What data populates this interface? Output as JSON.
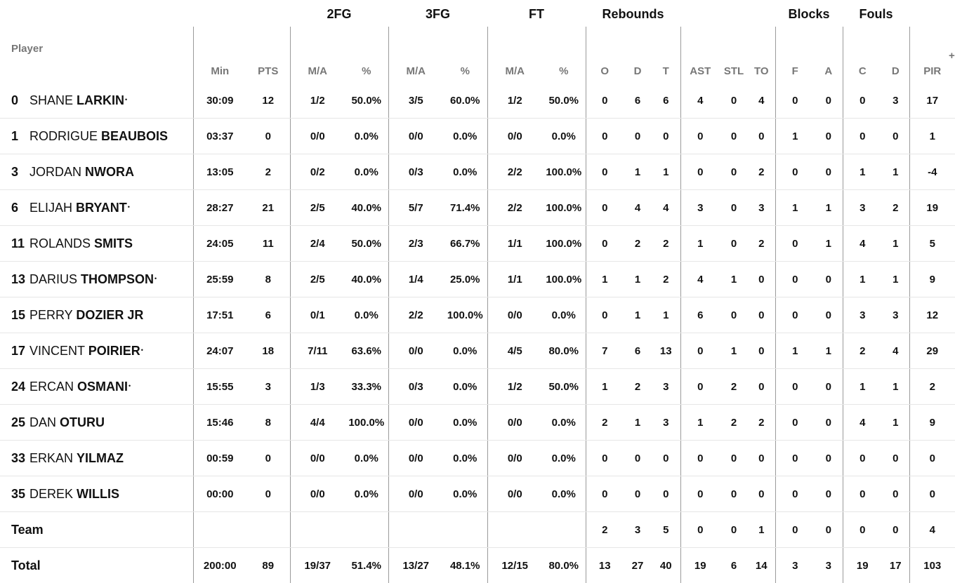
{
  "groups": {
    "fg2": "2FG",
    "fg3": "3FG",
    "ft": "FT",
    "rebounds": "Rebounds",
    "blocks": "Blocks",
    "fouls": "Fouls"
  },
  "columns": {
    "player": "Player",
    "min": "Min",
    "pts": "PTS",
    "fg2_ma": "M/A",
    "fg2_pct": "%",
    "fg3_ma": "M/A",
    "fg3_pct": "%",
    "ft_ma": "M/A",
    "ft_pct": "%",
    "reb_o": "O",
    "reb_d": "D",
    "reb_t": "T",
    "ast": "AST",
    "stl": "STL",
    "to": "TO",
    "blk_f": "F",
    "blk_a": "A",
    "foul_c": "C",
    "foul_d": "D",
    "pir": "PIR",
    "more": "+"
  },
  "starter_mark": "•",
  "players": [
    {
      "num": "0",
      "first": "SHANE",
      "last": "LARKIN",
      "starter": true,
      "min": "30:09",
      "pts": "12",
      "fg2_ma": "1/2",
      "fg2_pct": "50.0%",
      "fg3_ma": "3/5",
      "fg3_pct": "60.0%",
      "ft_ma": "1/2",
      "ft_pct": "50.0%",
      "o": "0",
      "d": "6",
      "t": "6",
      "ast": "4",
      "stl": "0",
      "to": "4",
      "bf": "0",
      "ba": "0",
      "fc": "0",
      "fd": "3",
      "pir": "17"
    },
    {
      "num": "1",
      "first": "RODRIGUE",
      "last": "BEAUBOIS",
      "starter": false,
      "min": "03:37",
      "pts": "0",
      "fg2_ma": "0/0",
      "fg2_pct": "0.0%",
      "fg3_ma": "0/0",
      "fg3_pct": "0.0%",
      "ft_ma": "0/0",
      "ft_pct": "0.0%",
      "o": "0",
      "d": "0",
      "t": "0",
      "ast": "0",
      "stl": "0",
      "to": "0",
      "bf": "1",
      "ba": "0",
      "fc": "0",
      "fd": "0",
      "pir": "1"
    },
    {
      "num": "3",
      "first": "JORDAN",
      "last": "NWORA",
      "starter": false,
      "min": "13:05",
      "pts": "2",
      "fg2_ma": "0/2",
      "fg2_pct": "0.0%",
      "fg3_ma": "0/3",
      "fg3_pct": "0.0%",
      "ft_ma": "2/2",
      "ft_pct": "100.0%",
      "o": "0",
      "d": "1",
      "t": "1",
      "ast": "0",
      "stl": "0",
      "to": "2",
      "bf": "0",
      "ba": "0",
      "fc": "1",
      "fd": "1",
      "pir": "-4"
    },
    {
      "num": "6",
      "first": "ELIJAH",
      "last": "BRYANT",
      "starter": true,
      "min": "28:27",
      "pts": "21",
      "fg2_ma": "2/5",
      "fg2_pct": "40.0%",
      "fg3_ma": "5/7",
      "fg3_pct": "71.4%",
      "ft_ma": "2/2",
      "ft_pct": "100.0%",
      "o": "0",
      "d": "4",
      "t": "4",
      "ast": "3",
      "stl": "0",
      "to": "3",
      "bf": "1",
      "ba": "1",
      "fc": "3",
      "fd": "2",
      "pir": "19"
    },
    {
      "num": "11",
      "first": "ROLANDS",
      "last": "SMITS",
      "starter": false,
      "min": "24:05",
      "pts": "11",
      "fg2_ma": "2/4",
      "fg2_pct": "50.0%",
      "fg3_ma": "2/3",
      "fg3_pct": "66.7%",
      "ft_ma": "1/1",
      "ft_pct": "100.0%",
      "o": "0",
      "d": "2",
      "t": "2",
      "ast": "1",
      "stl": "0",
      "to": "2",
      "bf": "0",
      "ba": "1",
      "fc": "4",
      "fd": "1",
      "pir": "5"
    },
    {
      "num": "13",
      "first": "DARIUS",
      "last": "THOMPSON",
      "starter": true,
      "min": "25:59",
      "pts": "8",
      "fg2_ma": "2/5",
      "fg2_pct": "40.0%",
      "fg3_ma": "1/4",
      "fg3_pct": "25.0%",
      "ft_ma": "1/1",
      "ft_pct": "100.0%",
      "o": "1",
      "d": "1",
      "t": "2",
      "ast": "4",
      "stl": "1",
      "to": "0",
      "bf": "0",
      "ba": "0",
      "fc": "1",
      "fd": "1",
      "pir": "9"
    },
    {
      "num": "15",
      "first": "PERRY",
      "last": "DOZIER JR",
      "starter": false,
      "min": "17:51",
      "pts": "6",
      "fg2_ma": "0/1",
      "fg2_pct": "0.0%",
      "fg3_ma": "2/2",
      "fg3_pct": "100.0%",
      "ft_ma": "0/0",
      "ft_pct": "0.0%",
      "o": "0",
      "d": "1",
      "t": "1",
      "ast": "6",
      "stl": "0",
      "to": "0",
      "bf": "0",
      "ba": "0",
      "fc": "3",
      "fd": "3",
      "pir": "12"
    },
    {
      "num": "17",
      "first": "VINCENT",
      "last": "POIRIER",
      "starter": true,
      "min": "24:07",
      "pts": "18",
      "fg2_ma": "7/11",
      "fg2_pct": "63.6%",
      "fg3_ma": "0/0",
      "fg3_pct": "0.0%",
      "ft_ma": "4/5",
      "ft_pct": "80.0%",
      "o": "7",
      "d": "6",
      "t": "13",
      "ast": "0",
      "stl": "1",
      "to": "0",
      "bf": "1",
      "ba": "1",
      "fc": "2",
      "fd": "4",
      "pir": "29"
    },
    {
      "num": "24",
      "first": "ERCAN",
      "last": "OSMANI",
      "starter": true,
      "min": "15:55",
      "pts": "3",
      "fg2_ma": "1/3",
      "fg2_pct": "33.3%",
      "fg3_ma": "0/3",
      "fg3_pct": "0.0%",
      "ft_ma": "1/2",
      "ft_pct": "50.0%",
      "o": "1",
      "d": "2",
      "t": "3",
      "ast": "0",
      "stl": "2",
      "to": "0",
      "bf": "0",
      "ba": "0",
      "fc": "1",
      "fd": "1",
      "pir": "2"
    },
    {
      "num": "25",
      "first": "DAN",
      "last": "OTURU",
      "starter": false,
      "min": "15:46",
      "pts": "8",
      "fg2_ma": "4/4",
      "fg2_pct": "100.0%",
      "fg3_ma": "0/0",
      "fg3_pct": "0.0%",
      "ft_ma": "0/0",
      "ft_pct": "0.0%",
      "o": "2",
      "d": "1",
      "t": "3",
      "ast": "1",
      "stl": "2",
      "to": "2",
      "bf": "0",
      "ba": "0",
      "fc": "4",
      "fd": "1",
      "pir": "9"
    },
    {
      "num": "33",
      "first": "ERKAN",
      "last": "YILMAZ",
      "starter": false,
      "min": "00:59",
      "pts": "0",
      "fg2_ma": "0/0",
      "fg2_pct": "0.0%",
      "fg3_ma": "0/0",
      "fg3_pct": "0.0%",
      "ft_ma": "0/0",
      "ft_pct": "0.0%",
      "o": "0",
      "d": "0",
      "t": "0",
      "ast": "0",
      "stl": "0",
      "to": "0",
      "bf": "0",
      "ba": "0",
      "fc": "0",
      "fd": "0",
      "pir": "0"
    },
    {
      "num": "35",
      "first": "DEREK",
      "last": "WILLIS",
      "starter": false,
      "min": "00:00",
      "pts": "0",
      "fg2_ma": "0/0",
      "fg2_pct": "0.0%",
      "fg3_ma": "0/0",
      "fg3_pct": "0.0%",
      "ft_ma": "0/0",
      "ft_pct": "0.0%",
      "o": "0",
      "d": "0",
      "t": "0",
      "ast": "0",
      "stl": "0",
      "to": "0",
      "bf": "0",
      "ba": "0",
      "fc": "0",
      "fd": "0",
      "pir": "0"
    }
  ],
  "team": {
    "label": "Team",
    "min": "",
    "pts": "",
    "fg2_ma": "",
    "fg2_pct": "",
    "fg3_ma": "",
    "fg3_pct": "",
    "ft_ma": "",
    "ft_pct": "",
    "o": "2",
    "d": "3",
    "t": "5",
    "ast": "0",
    "stl": "0",
    "to": "1",
    "bf": "0",
    "ba": "0",
    "fc": "0",
    "fd": "0",
    "pir": "4"
  },
  "total": {
    "label": "Total",
    "min": "200:00",
    "pts": "89",
    "fg2_ma": "19/37",
    "fg2_pct": "51.4%",
    "fg3_ma": "13/27",
    "fg3_pct": "48.1%",
    "ft_ma": "12/15",
    "ft_pct": "80.0%",
    "o": "13",
    "d": "27",
    "t": "40",
    "ast": "19",
    "stl": "6",
    "to": "14",
    "bf": "3",
    "ba": "3",
    "fc": "19",
    "fd": "17",
    "pir": "103"
  }
}
